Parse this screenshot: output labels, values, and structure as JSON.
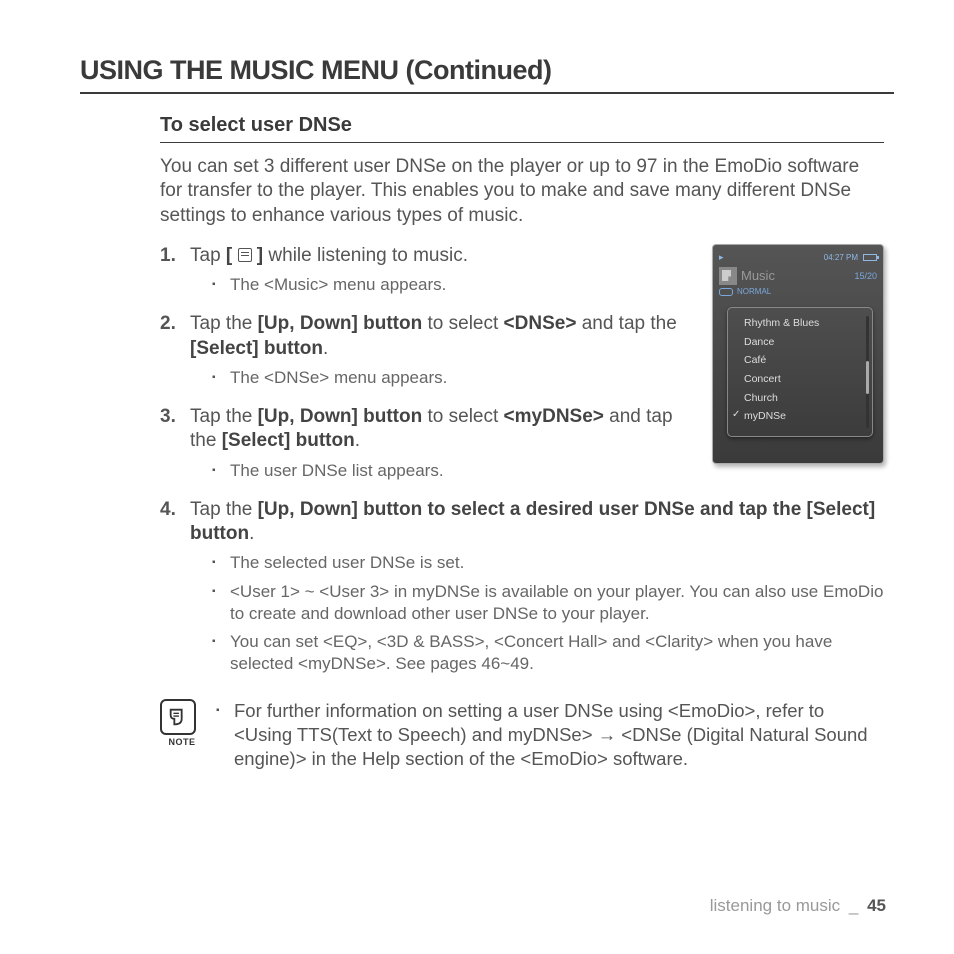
{
  "page_title": "USING THE MUSIC MENU (Continued)",
  "section_title": "To select user DNSe",
  "intro": "You can set 3 different user DNSe on the player or up to 97 in the EmoDio software for transfer to the player. This enables you to make and save many different DNSe settings to enhance various types of music.",
  "steps": [
    {
      "num": "1.",
      "parts": [
        "Tap ",
        "[ ",
        "ICON",
        " ]",
        " while listening to music."
      ],
      "sub": [
        "The <Music> menu appears."
      ]
    },
    {
      "num": "2.",
      "parts": [
        "Tap the ",
        "[Up, Down] button",
        " to select ",
        "<DNSe>",
        " and tap the ",
        "[Select] button",
        "."
      ],
      "sub": [
        "The <DNSe> menu appears."
      ]
    },
    {
      "num": "3.",
      "parts": [
        "Tap the ",
        "[Up, Down] button",
        " to select ",
        "<myDNSe>",
        " and tap the ",
        "[Select] button",
        "."
      ],
      "sub": [
        "The user DNSe list appears."
      ]
    },
    {
      "num": "4.",
      "parts": [
        "Tap the ",
        "[Up, Down] button",
        " to select a desired user DNSe and  tap the [Select] ",
        "button",
        "."
      ],
      "sub": [
        "The selected user DNSe is set.",
        "<User 1> ~ <User 3> in myDNSe is available on your player. You can also use EmoDio to create and download other user DNSe to your player.",
        "You can set <EQ>, <3D & BASS>, <Concert Hall> and <Clarity> when you have selected <myDNSe>. See pages 46~49."
      ]
    }
  ],
  "note_label": "NOTE",
  "note_text": "For further information on setting a user DNSe using <EmoDio>, refer to <Using TTS(Text to Speech) and myDNSe> → <DNSe (Digital Natural Sound engine)> in the Help section of the <EmoDio> software.",
  "device": {
    "time": "04:27 PM",
    "title": "Music",
    "count": "15/20",
    "status": "NORMAL",
    "items": [
      "Rhythm & Blues",
      "Dance",
      "Café",
      "Concert",
      "Church",
      "myDNSe"
    ],
    "selected_index": 5
  },
  "footer": {
    "section": "listening to music",
    "sep": "_",
    "page": "45"
  }
}
